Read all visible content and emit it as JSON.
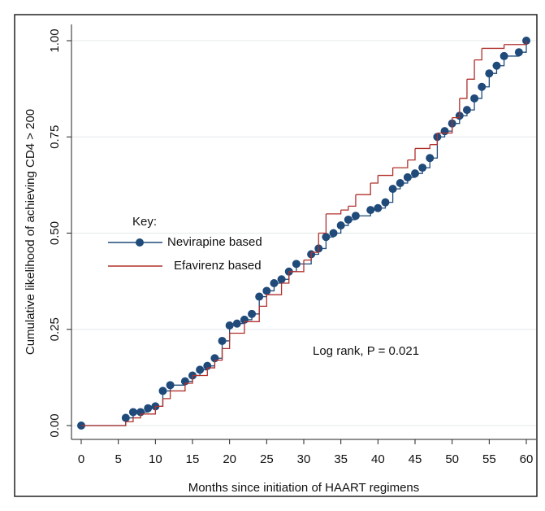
{
  "chart_data": {
    "type": "step",
    "y_label": "Cumulative likelihood of achieving CD4 > 200",
    "x_label": "Months since initiation of HAART regimens",
    "legend_title": "Key:",
    "annotation": "Log rank, P = 0.021",
    "xlim": [
      0,
      60
    ],
    "xticks": [
      0,
      5,
      10,
      15,
      20,
      25,
      30,
      35,
      40,
      45,
      50,
      55,
      60
    ],
    "ylim": [
      0,
      1
    ],
    "yticks": [
      {
        "value": 0,
        "label": "0.00"
      },
      {
        "value": 0.25,
        "label": "0.25"
      },
      {
        "value": 0.5,
        "label": "0.50"
      },
      {
        "value": 0.75,
        "label": "0.75"
      },
      {
        "value": 1,
        "label": "1.00"
      }
    ],
    "grid": true,
    "series": [
      {
        "name": "Nevirapine based",
        "color": "#1f4a7a",
        "markers": true,
        "x": [
          0,
          6,
          7,
          8,
          9,
          10,
          11,
          12,
          14,
          15,
          16,
          17,
          18,
          19,
          20,
          21,
          22,
          23,
          24,
          25,
          26,
          27,
          28,
          29,
          31,
          32,
          33,
          34,
          35,
          36,
          37,
          39,
          40,
          41,
          42,
          43,
          44,
          45,
          46,
          47,
          48,
          49,
          50,
          51,
          52,
          53,
          54,
          55,
          56,
          57,
          59,
          60
        ],
        "values": [
          0,
          0.02,
          0.035,
          0.035,
          0.045,
          0.05,
          0.09,
          0.105,
          0.115,
          0.13,
          0.145,
          0.155,
          0.175,
          0.22,
          0.26,
          0.265,
          0.275,
          0.29,
          0.335,
          0.35,
          0.37,
          0.38,
          0.4,
          0.42,
          0.445,
          0.46,
          0.49,
          0.5,
          0.52,
          0.535,
          0.545,
          0.56,
          0.565,
          0.58,
          0.615,
          0.63,
          0.645,
          0.655,
          0.67,
          0.695,
          0.75,
          0.765,
          0.785,
          0.805,
          0.82,
          0.85,
          0.88,
          0.915,
          0.935,
          0.96,
          0.97,
          1.0
        ]
      },
      {
        "name": "Efavirenz based",
        "color": "#b0302c",
        "markers": false,
        "x": [
          0,
          6,
          7,
          8,
          10,
          11,
          12,
          14,
          15,
          17,
          18,
          19,
          20,
          22,
          24,
          25,
          27,
          28,
          30,
          31,
          32,
          33,
          35,
          36,
          37,
          39,
          40,
          42,
          44,
          45,
          47,
          48,
          50,
          51,
          52,
          53,
          54,
          57,
          60
        ],
        "values": [
          0,
          0.01,
          0.02,
          0.03,
          0.05,
          0.07,
          0.09,
          0.11,
          0.13,
          0.15,
          0.17,
          0.2,
          0.24,
          0.27,
          0.31,
          0.34,
          0.37,
          0.4,
          0.43,
          0.45,
          0.5,
          0.55,
          0.56,
          0.57,
          0.6,
          0.63,
          0.65,
          0.67,
          0.69,
          0.72,
          0.73,
          0.76,
          0.8,
          0.85,
          0.9,
          0.95,
          0.98,
          0.99,
          1.0
        ]
      }
    ]
  }
}
